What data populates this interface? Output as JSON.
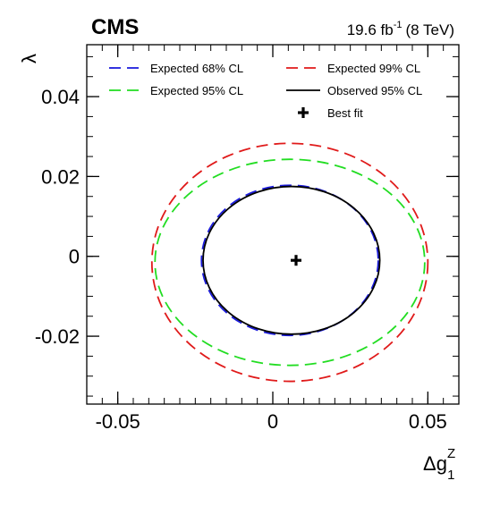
{
  "header": {
    "experiment": "CMS",
    "lumi_prefix": "19.6 fb",
    "lumi_exp": "-1",
    "lumi_suffix": "(8 TeV)"
  },
  "axes": {
    "x_title_main": "Δg",
    "x_title_sub": "1",
    "x_title_sup": "Z",
    "y_title": "λ"
  },
  "chart_data": {
    "type": "scatter",
    "title": "",
    "xlabel": "Δg1Z",
    "ylabel": "λ",
    "xlim": [
      -0.06,
      0.06
    ],
    "ylim": [
      -0.037,
      0.053
    ],
    "x_ticks": [
      {
        "value": -0.05,
        "label": "-0.05"
      },
      {
        "value": 0,
        "label": "0"
      },
      {
        "value": 0.05,
        "label": "0.05"
      }
    ],
    "y_ticks": [
      {
        "value": -0.02,
        "label": "-0.02"
      },
      {
        "value": 0,
        "label": "0"
      },
      {
        "value": 0.02,
        "label": "0.02"
      },
      {
        "value": 0.04,
        "label": "0.04"
      }
    ],
    "legend_position": "top",
    "series": [
      {
        "name": "Expected 68% CL",
        "color": "#1a1adb",
        "style": "dashed",
        "contour": {
          "cx": 0.0055,
          "cy": -0.001,
          "rx": 0.0285,
          "ry": 0.0188
        }
      },
      {
        "name": "Expected 95% CL",
        "color": "#22dd22",
        "style": "dashed",
        "contour": {
          "cx": 0.0055,
          "cy": -0.0015,
          "rx": 0.0435,
          "ry": 0.0258
        }
      },
      {
        "name": "Expected 99% CL",
        "color": "#e01a1a",
        "style": "dashed",
        "contour": {
          "cx": 0.0055,
          "cy": -0.0015,
          "rx": 0.0445,
          "ry": 0.0298
        }
      },
      {
        "name": "Observed 95% CL",
        "color": "#000000",
        "style": "solid",
        "contour": {
          "cx": 0.006,
          "cy": -0.001,
          "rx": 0.0285,
          "ry": 0.0185
        }
      }
    ],
    "best_fit": {
      "name": "Best fit",
      "x": 0.0075,
      "y": -0.001
    }
  }
}
